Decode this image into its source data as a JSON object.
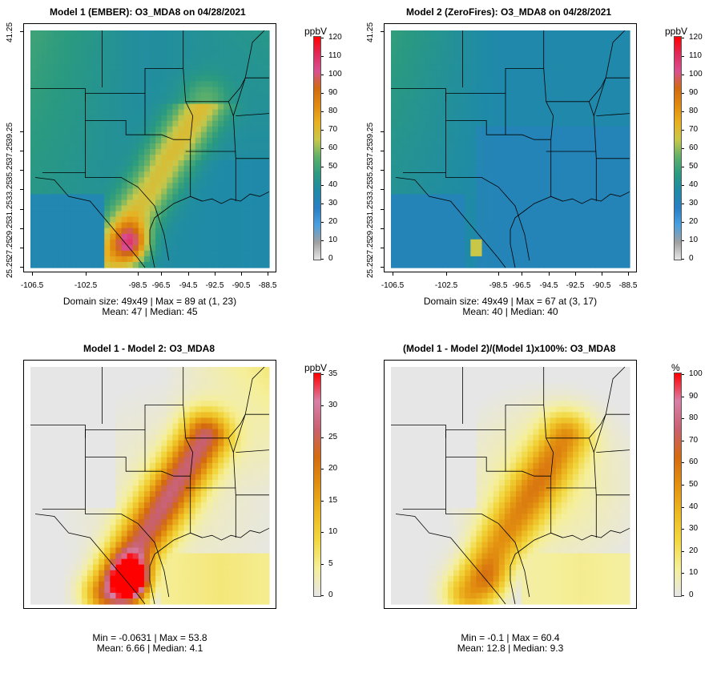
{
  "panels": [
    {
      "title": "Model 1 (EMBER): O3_MDA8 on 04/28/2021",
      "unit": "ppbV",
      "scale": "ozone",
      "cbar_ticks": [
        "0",
        "10",
        "20",
        "30",
        "40",
        "50",
        "60",
        "70",
        "80",
        "90",
        "100",
        "110",
        "120"
      ],
      "cbar_max": 120,
      "stats_line1": "Domain size: 49x49 | Max = 89 at (1, 23)",
      "stats_line2": "Mean: 47 |  Median: 45",
      "y_ticks": [
        "25.25",
        "27.25",
        "29.25",
        "31.25",
        "33.25",
        "35.25",
        "37.25",
        "39.25",
        "41.25"
      ],
      "x_ticks": [
        "-106.5",
        "-102.5",
        "-98.5",
        "-96.5",
        "-94.5",
        "-92.5",
        "-90.5",
        "-88.5"
      ]
    },
    {
      "title": "Model 2 (ZeroFires): O3_MDA8 on 04/28/2021",
      "unit": "ppbV",
      "scale": "ozone",
      "cbar_ticks": [
        "0",
        "10",
        "20",
        "30",
        "40",
        "50",
        "60",
        "70",
        "80",
        "90",
        "100",
        "110",
        "120"
      ],
      "cbar_max": 120,
      "stats_line1": "Domain size: 49x49 | Max = 67 at (3, 17)",
      "stats_line2": "Mean: 40 |  Median: 40",
      "y_ticks": [
        "25.25",
        "27.25",
        "29.25",
        "31.25",
        "33.25",
        "35.25",
        "37.25",
        "39.25",
        "41.25"
      ],
      "x_ticks": [
        "-106.5",
        "-102.5",
        "-98.5",
        "-96.5",
        "-94.5",
        "-92.5",
        "-90.5",
        "-88.5"
      ]
    },
    {
      "title": "Model 1 - Model 2: O3_MDA8",
      "unit": "ppbV",
      "scale": "diff",
      "cbar_ticks": [
        "0",
        "5",
        "10",
        "15",
        "20",
        "25",
        "30",
        "35"
      ],
      "cbar_max": 35,
      "stats_line1": "Min = -0.0631 | Max = 53.8",
      "stats_line2": "Mean: 6.66 |  Median: 4.1"
    },
    {
      "title": "(Model 1 - Model 2)/(Model 1)x100%: O3_MDA8",
      "unit": "%",
      "scale": "diff",
      "cbar_ticks": [
        "0",
        "10",
        "20",
        "30",
        "40",
        "50",
        "60",
        "70",
        "80",
        "90",
        "100"
      ],
      "cbar_max": 100,
      "stats_line1": "Min = -0.1 | Max = 60.4",
      "stats_line2": "Mean: 12.8 |  Median: 9.3"
    }
  ],
  "colors": {
    "ozone_stops": [
      "#e6e6e6",
      "#a0a0a0",
      "#4aa0e0",
      "#2a7fc4",
      "#1f8aa8",
      "#2a9a80",
      "#5fb06a",
      "#c8c84a",
      "#e8b020",
      "#e08a10",
      "#d06a10",
      "#d85090",
      "#e02a5a",
      "#ff0000"
    ],
    "diff_stops": [
      "#e6e6e6",
      "#f5ef9a",
      "#f2d840",
      "#edb820",
      "#e29010",
      "#d46a10",
      "#c86070",
      "#d880a8",
      "#ff0000"
    ],
    "map_line": "#000000"
  }
}
